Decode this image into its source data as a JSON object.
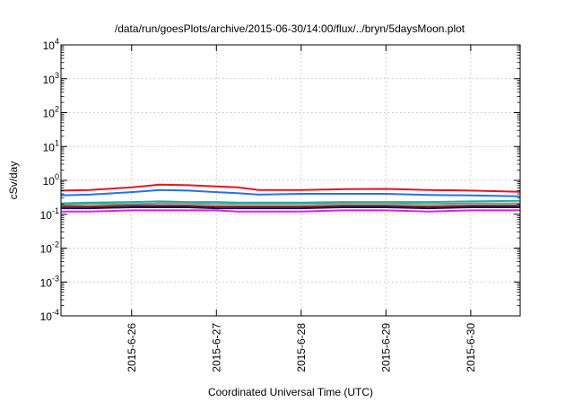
{
  "chart_data": {
    "type": "line",
    "title": "/data/run/goesPlots/archive/2015-06-30/14:00/flux/../bryn/5daysMoon.plot",
    "xlabel": "Coordinated Universal Time (UTC)",
    "ylabel": "cSv/day",
    "xlim": [
      "2015-06-25 04:00",
      "2015-06-30 14:00"
    ],
    "ylim": [
      0.0001,
      10000
    ],
    "yscale": "log",
    "grid": true,
    "x_ticks": [
      "2015-6-26",
      "2015-6-27",
      "2015-6-28",
      "2015-6-29",
      "2015-6-30"
    ],
    "y_ticks": [
      {
        "value": 0.0001,
        "base": "10",
        "exp": "-4"
      },
      {
        "value": 0.001,
        "base": "10",
        "exp": "-3"
      },
      {
        "value": 0.01,
        "base": "10",
        "exp": "-2"
      },
      {
        "value": 0.1,
        "base": "10",
        "exp": "-1"
      },
      {
        "value": 1,
        "base": "10",
        "exp": "0"
      },
      {
        "value": 10,
        "base": "10",
        "exp": "1"
      },
      {
        "value": 100,
        "base": "10",
        "exp": "2"
      },
      {
        "value": 1000,
        "base": "10",
        "exp": "3"
      },
      {
        "value": 10000,
        "base": "10",
        "exp": "4"
      }
    ],
    "x": [
      "2015-06-25 04:00",
      "2015-06-25 12:00",
      "2015-06-26 00:00",
      "2015-06-26 08:00",
      "2015-06-26 16:00",
      "2015-06-27 00:00",
      "2015-06-27 06:00",
      "2015-06-27 12:00",
      "2015-06-28 00:00",
      "2015-06-28 12:00",
      "2015-06-29 00:00",
      "2015-06-29 12:00",
      "2015-06-30 00:00",
      "2015-06-30 14:00"
    ],
    "series": [
      {
        "color": "#e8141c",
        "values": [
          0.5,
          0.52,
          0.62,
          0.75,
          0.72,
          0.66,
          0.62,
          0.52,
          0.52,
          0.55,
          0.56,
          0.52,
          0.5,
          0.46
        ]
      },
      {
        "color": "#2a6ef0",
        "values": [
          0.36,
          0.38,
          0.45,
          0.52,
          0.5,
          0.45,
          0.42,
          0.38,
          0.4,
          0.4,
          0.4,
          0.37,
          0.36,
          0.34
        ]
      },
      {
        "color": "#17b5a4",
        "values": [
          0.21,
          0.22,
          0.23,
          0.24,
          0.23,
          0.23,
          0.22,
          0.22,
          0.22,
          0.23,
          0.23,
          0.23,
          0.24,
          0.25
        ]
      },
      {
        "color": "#8a8a8a",
        "values": [
          0.19,
          0.2,
          0.2,
          0.21,
          0.21,
          0.2,
          0.2,
          0.2,
          0.2,
          0.21,
          0.21,
          0.2,
          0.21,
          0.21
        ]
      },
      {
        "color": "#7a2a1e",
        "values": [
          0.17,
          0.17,
          0.18,
          0.18,
          0.18,
          0.17,
          0.17,
          0.17,
          0.17,
          0.18,
          0.18,
          0.17,
          0.18,
          0.18
        ]
      },
      {
        "color": "#101060",
        "values": [
          0.15,
          0.15,
          0.16,
          0.16,
          0.16,
          0.15,
          0.15,
          0.15,
          0.15,
          0.16,
          0.16,
          0.15,
          0.16,
          0.16
        ]
      },
      {
        "color": "#e020d8",
        "values": [
          0.12,
          0.12,
          0.13,
          0.13,
          0.13,
          0.13,
          0.12,
          0.12,
          0.12,
          0.13,
          0.13,
          0.12,
          0.13,
          0.13
        ]
      }
    ]
  }
}
